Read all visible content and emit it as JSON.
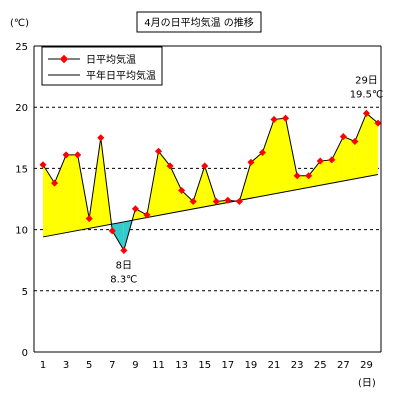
{
  "chart_data": {
    "type": "line",
    "title": "4月の日平均気温 の推移",
    "ylabel": "(℃)",
    "xlabel": "(日)",
    "ylim": [
      0,
      25
    ],
    "xlim": [
      1,
      30
    ],
    "yticks": [
      0,
      5,
      10,
      15,
      20,
      25
    ],
    "xticks": [
      1,
      3,
      5,
      7,
      9,
      11,
      13,
      15,
      17,
      19,
      21,
      23,
      25,
      27,
      29
    ],
    "grid": "horizontal-dashed",
    "legend_position": "top-left",
    "series": [
      {
        "name": "日平均気温",
        "color": "#ff0000",
        "x": [
          1,
          2,
          3,
          4,
          5,
          6,
          7,
          8,
          9,
          10,
          11,
          12,
          13,
          14,
          15,
          16,
          17,
          18,
          19,
          20,
          21,
          22,
          23,
          24,
          25,
          26,
          27,
          28,
          29,
          30
        ],
        "values": [
          15.3,
          13.8,
          16.1,
          16.1,
          10.9,
          17.5,
          9.9,
          8.3,
          11.7,
          11.2,
          16.4,
          15.2,
          13.2,
          12.3,
          15.2,
          12.3,
          12.4,
          12.3,
          15.5,
          16.3,
          19.0,
          19.1,
          14.4,
          14.4,
          15.6,
          15.7,
          17.6,
          17.2,
          19.5,
          18.7
        ]
      },
      {
        "name": "平年日平均気温",
        "color": "#000000",
        "x": [
          1,
          30
        ],
        "values": [
          9.4,
          14.5
        ]
      }
    ],
    "fills": {
      "above_normal": "#ffff00",
      "below_normal": "#33cccc"
    },
    "annotations": [
      {
        "day_label": "8日",
        "value_label": "8.3℃",
        "x": 8,
        "y": 8.3,
        "placement": "below"
      },
      {
        "day_label": "29日",
        "value_label": "19.5℃",
        "x": 29,
        "y": 19.5,
        "placement": "above"
      }
    ]
  }
}
